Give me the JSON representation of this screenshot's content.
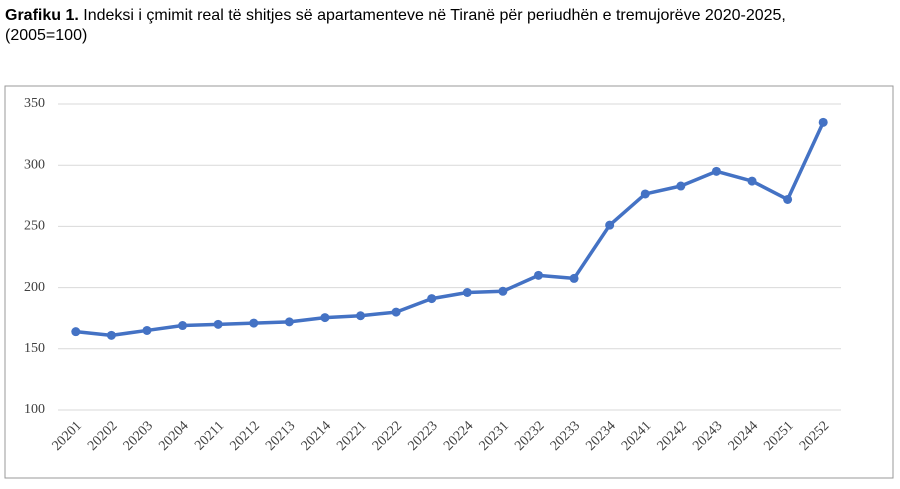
{
  "chart_data": {
    "type": "line",
    "title_prefix": "Grafiku 1.",
    "title": "Indeksi i çmimit real të shitjes së apartamenteve në Tiranë për periudhën e tremujorëve 2020-2025,",
    "subtitle": "(2005=100)",
    "categories": [
      "20201",
      "20202",
      "20203",
      "20204",
      "20211",
      "20212",
      "20213",
      "20214",
      "20221",
      "20222",
      "20223",
      "20224",
      "20231",
      "20232",
      "20233",
      "20234",
      "20241",
      "20242",
      "20243",
      "20244",
      "20251",
      "20252"
    ],
    "values": [
      164,
      161,
      165,
      169,
      170,
      171,
      172,
      175.5,
      177,
      180,
      191,
      196,
      197,
      210,
      207.5,
      251,
      276.5,
      283,
      295,
      287,
      272,
      335
    ],
    "color": "#4472c4",
    "ylim": [
      100,
      350
    ],
    "yticks": [
      100,
      150,
      200,
      250,
      300,
      350
    ],
    "grid": true
  }
}
